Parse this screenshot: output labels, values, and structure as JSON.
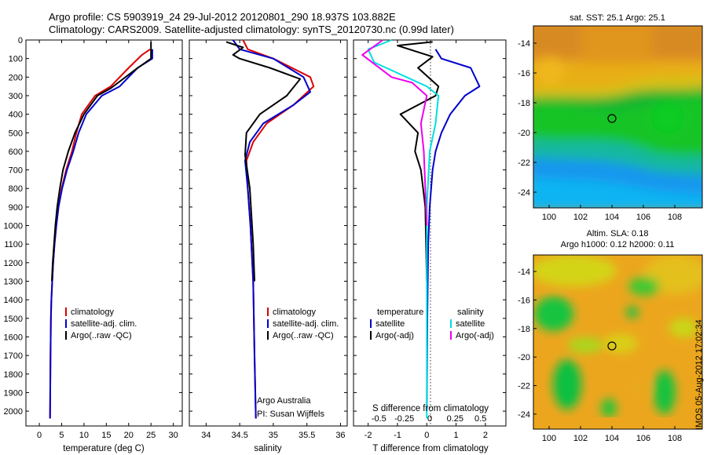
{
  "title_line1": "Argo profile: CS 5903919_24 29-Jul-2012 20120801_290 18.937S 103.882E",
  "title_line2": "Climatology: CARS2009. Satellite-adjusted climatology: synTS_20120730.nc (0.99d later)",
  "colors": {
    "climatology": "#dd0000",
    "satellite": "#0000cc",
    "argo": "#000000",
    "salinity_sat": "#00e0e0",
    "argo_adj": "#ee00ee"
  },
  "chart_data": [
    {
      "type": "line",
      "xlabel": "temperature (deg C)",
      "xlim": [
        -3,
        32
      ],
      "xticks": [
        0,
        5,
        10,
        15,
        20,
        25,
        30
      ],
      "ylim": [
        0,
        2080
      ],
      "yticks": [
        0,
        100,
        200,
        300,
        400,
        500,
        600,
        700,
        800,
        900,
        1000,
        1100,
        1200,
        1300,
        1400,
        1500,
        1600,
        1700,
        1800,
        1900,
        2000
      ],
      "y_inverted": true,
      "legend": [
        "climatology",
        "satellite-adj. clim.",
        "Argo(..raw -QC)"
      ],
      "series": [
        {
          "name": "climatology",
          "color": "#dd0000",
          "x": [
            24.8,
            23.0,
            20.0,
            16.0,
            12.5,
            9.5,
            8.3,
            7.3,
            6.0,
            5.0,
            4.3,
            3.8,
            3.4,
            3.1,
            2.9,
            2.7,
            2.6,
            2.5,
            2.4
          ],
          "y": [
            50,
            80,
            150,
            250,
            300,
            400,
            500,
            600,
            700,
            800,
            900,
            1000,
            1100,
            1200,
            1300,
            1400,
            1500,
            1700,
            2040
          ]
        },
        {
          "name": "satellite-adj. clim.",
          "color": "#0000cc",
          "x": [
            25.3,
            25.3,
            22.0,
            18.0,
            14.0,
            10.5,
            8.8,
            7.6,
            6.2,
            5.1,
            4.3,
            3.8,
            3.4,
            3.1,
            2.9,
            2.7,
            2.6,
            2.5,
            2.4
          ],
          "y": [
            50,
            100,
            150,
            250,
            300,
            400,
            500,
            600,
            700,
            800,
            900,
            1000,
            1100,
            1200,
            1300,
            1400,
            1500,
            1700,
            2040
          ]
        },
        {
          "name": "Argo(..raw -QC)",
          "color": "#000000",
          "x": [
            25.0,
            25.0,
            21.5,
            16.0,
            13.0,
            10.0,
            8.0,
            6.5,
            5.3,
            4.6,
            4.0,
            3.6,
            3.3,
            3.0,
            2.8
          ],
          "y": [
            10,
            100,
            160,
            260,
            300,
            400,
            500,
            600,
            700,
            800,
            900,
            1000,
            1100,
            1200,
            1300
          ]
        }
      ]
    },
    {
      "type": "line",
      "xlabel": "salinity",
      "xlim": [
        33.75,
        36.1
      ],
      "xticks": [
        34,
        34.5,
        35,
        35.5,
        36
      ],
      "ylim": [
        0,
        2080
      ],
      "y_inverted": true,
      "legend": [
        "climatology",
        "satellite-adj. clim.",
        "Argo(..raw -QC)"
      ],
      "annotation": [
        "Argo Australia",
        "PI: Susan Wijffels"
      ],
      "series": [
        {
          "name": "climatology",
          "color": "#dd0000",
          "x": [
            34.55,
            34.62,
            35.0,
            35.55,
            35.6,
            35.3,
            34.9,
            34.7,
            34.6,
            34.62,
            34.66,
            34.7,
            34.72,
            34.74
          ],
          "y": [
            0,
            50,
            100,
            200,
            250,
            350,
            450,
            550,
            650,
            800,
            1000,
            1300,
            1700,
            2040
          ]
        },
        {
          "name": "satellite-adj. clim.",
          "color": "#0000cc",
          "x": [
            34.4,
            34.5,
            35.0,
            35.45,
            35.55,
            35.3,
            34.85,
            34.65,
            34.58,
            34.62,
            34.66,
            34.7,
            34.72,
            34.74
          ],
          "y": [
            0,
            50,
            100,
            200,
            280,
            350,
            450,
            550,
            650,
            800,
            1000,
            1300,
            1700,
            2040
          ]
        },
        {
          "name": "Argo(..raw -QC)",
          "color": "#000000",
          "x": [
            34.3,
            34.55,
            34.4,
            34.5,
            34.95,
            35.4,
            35.2,
            34.8,
            34.6,
            34.58,
            34.65,
            34.7,
            34.72
          ],
          "y": [
            10,
            40,
            80,
            100,
            150,
            210,
            300,
            400,
            500,
            620,
            800,
            1100,
            1300
          ]
        }
      ]
    },
    {
      "type": "line",
      "xlabel": "T difference from climatology",
      "x2label": "S difference from climatology",
      "xlim": [
        -2.5,
        2.7
      ],
      "xticks": [
        -2,
        -1,
        0,
        1,
        2
      ],
      "x2ticks": [
        -0.5,
        -0.25,
        0,
        0.25,
        0.5
      ],
      "ylim": [
        0,
        2080
      ],
      "y_inverted": true,
      "legend_left": [
        "temperature",
        "satellite",
        "Argo(-adj)"
      ],
      "legend_right": [
        "salinity",
        "satellite",
        "Argo(-adj)"
      ],
      "series": [
        {
          "name": "temperature satellite",
          "color": "#0000cc",
          "x": [
            0.3,
            0.5,
            1.5,
            1.8,
            1.3,
            0.8,
            0.5,
            0.3,
            0.2,
            0.1,
            0.05,
            0.02,
            0
          ],
          "y": [
            50,
            100,
            150,
            250,
            300,
            400,
            500,
            600,
            700,
            900,
            1100,
            1500,
            2000
          ]
        },
        {
          "name": "temperature Argo",
          "color": "#000000",
          "x": [
            0.2,
            -1.0,
            -0.4,
            0.2,
            -0.3,
            0.4,
            0.3,
            -0.9,
            -0.3,
            -0.4,
            -0.2,
            -0.05,
            0
          ],
          "y": [
            10,
            30,
            60,
            90,
            150,
            250,
            300,
            400,
            500,
            600,
            700,
            900,
            1300
          ]
        },
        {
          "name": "salinity satellite",
          "color": "#00e0e0",
          "x": [
            -1.2,
            -2.0,
            -1.8,
            0,
            0.4,
            0.3,
            0.1,
            0,
            0
          ],
          "y": [
            0,
            50,
            120,
            250,
            300,
            450,
            600,
            900,
            2040
          ]
        },
        {
          "name": "salinity Argo",
          "color": "#ee00ee",
          "x": [
            -1.5,
            -2.2,
            -1.2,
            -0.5,
            0,
            -0.2,
            -0.1,
            0
          ],
          "y": [
            0,
            80,
            200,
            230,
            300,
            450,
            600,
            1000
          ]
        }
      ]
    }
  ],
  "maps": {
    "top": {
      "title": "sat. SST: 25.1 Argo: 25.1",
      "xticks": [
        "100",
        "102",
        "104",
        "106",
        "108"
      ],
      "yticks": [
        "-14",
        "-16",
        "-18",
        "-20",
        "-22",
        "-24"
      ]
    },
    "bottom": {
      "title1": "Altim. SLA: 0.18",
      "title2": "Argo h1000: 0.12 h2000: 0.11",
      "xticks": [
        "100",
        "102",
        "104",
        "106",
        "108"
      ],
      "yticks": [
        "-14",
        "-16",
        "-18",
        "-20",
        "-22",
        "-24"
      ]
    }
  },
  "timestamp": "IMOS 05-Aug-2012 17:02:34"
}
